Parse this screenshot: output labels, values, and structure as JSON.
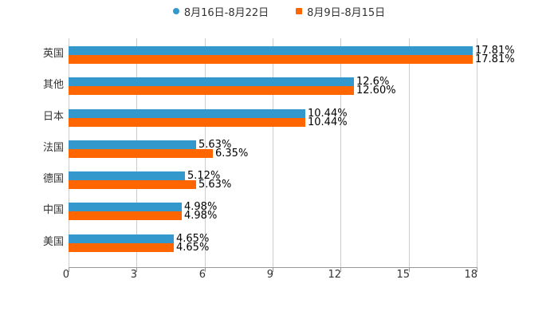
{
  "legend": [
    {
      "label": "8月16日-8月22日",
      "color": "#3399CC",
      "shape": "circle"
    },
    {
      "label": "8月9日-8月15日",
      "color": "#FF6600",
      "shape": "square"
    }
  ],
  "axis": {
    "ticks": [
      "0",
      "3",
      "6",
      "9",
      "12",
      "15",
      "18"
    ]
  },
  "categories": [
    "英国",
    "其他",
    "日本",
    "法国",
    "德国",
    "中国",
    "美国"
  ],
  "labels": {
    "s1": [
      "17.81%",
      "12.6%",
      "10.44%",
      "5.63%",
      "5.12%",
      "4.98%",
      "4.65%"
    ],
    "s2": [
      "17.81%",
      "12.60%",
      "10.44%",
      "6.35%",
      "5.63%",
      "4.98%",
      "4.65%"
    ]
  },
  "chart_data": {
    "type": "bar",
    "orientation": "horizontal",
    "title": "",
    "xlabel": "",
    "ylabel": "",
    "xlim": [
      0,
      18
    ],
    "x_ticks": [
      0,
      3,
      6,
      9,
      12,
      15,
      18
    ],
    "grid": true,
    "legend_position": "top",
    "categories": [
      "英国",
      "其他",
      "日本",
      "法国",
      "德国",
      "中国",
      "美国"
    ],
    "series": [
      {
        "name": "8月16日-8月22日",
        "color": "#3399CC",
        "values": [
          17.81,
          12.6,
          10.44,
          5.63,
          5.12,
          4.98,
          4.65
        ]
      },
      {
        "name": "8月9日-8月15日",
        "color": "#FF6600",
        "values": [
          17.81,
          12.6,
          10.44,
          6.35,
          5.63,
          4.98,
          4.65
        ]
      }
    ]
  }
}
